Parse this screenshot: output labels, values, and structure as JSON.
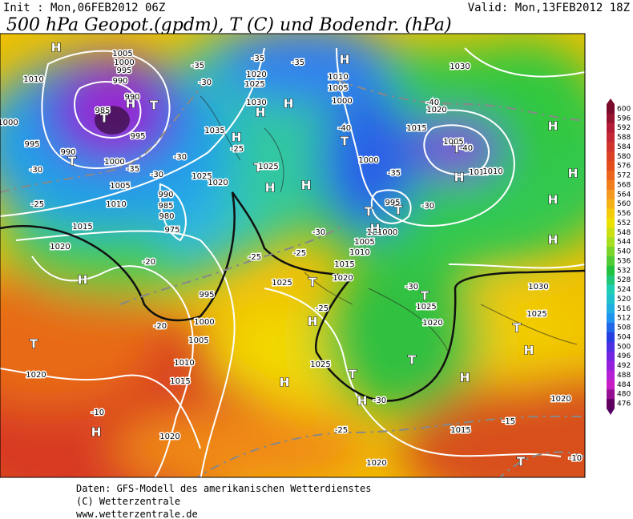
{
  "header": {
    "init": "Init : Mon,06FEB2012 06Z",
    "valid": "Valid: Mon,13FEB2012 18Z",
    "title": "500 hPa Geopot.(gpdm), T (C) und Bodendr. (hPa)"
  },
  "colorbar": {
    "labels": [
      600,
      596,
      592,
      588,
      584,
      580,
      576,
      572,
      568,
      564,
      560,
      556,
      552,
      548,
      544,
      540,
      536,
      532,
      528,
      524,
      520,
      516,
      512,
      508,
      504,
      500,
      496,
      492,
      488,
      484,
      480,
      476
    ]
  },
  "map": {
    "labels": [
      "H",
      "1005",
      "1000",
      "995",
      "990",
      "985",
      "990",
      "H",
      "T",
      "T",
      "995",
      "990",
      "T",
      "995",
      "1000",
      "1010",
      "1000",
      "1005",
      "1010",
      "1015",
      "1020",
      "H",
      "T",
      "1020",
      "-10",
      "H",
      "1020",
      "1015",
      "1010",
      "1005",
      "1000",
      "995",
      "975",
      "980",
      "985",
      "990",
      "1025",
      "1020",
      "1020",
      "1025",
      "1030",
      "1035",
      "H",
      "H",
      "T",
      "1025",
      "H",
      "1025",
      "H",
      "T",
      "1025",
      "H",
      "T",
      "H",
      "-30",
      "1020",
      "1015",
      "1020",
      "H",
      "H",
      "T",
      "1025",
      "1030",
      "H",
      "H",
      "H",
      "H",
      "T",
      "1030",
      "1020",
      "1005",
      "1010",
      "-40",
      "T",
      "H",
      "1015",
      "-40",
      "T",
      "1000",
      "-35",
      "995",
      "T",
      "-30",
      "1C1000",
      "1005",
      "1010",
      "1015",
      "1020",
      "H",
      "T",
      "1010",
      "1005",
      "1000",
      "H",
      "-40",
      "-35",
      "-35",
      "-35",
      "-30",
      "-30",
      "-25",
      "-30",
      "-35",
      "-30",
      "-25",
      "-20",
      "-20",
      "-25",
      "-25",
      "-25",
      "-30",
      "-30",
      "1025",
      "1020",
      "T",
      "T",
      "-25",
      "-15",
      "-10",
      "1010",
      "H",
      "H"
    ]
  },
  "footer": {
    "line1": "Daten: GFS-Modell des amerikanischen Wetterdienstes",
    "line2": "(C) Wetterzentrale",
    "line3": "www.wetterzentrale.de"
  }
}
